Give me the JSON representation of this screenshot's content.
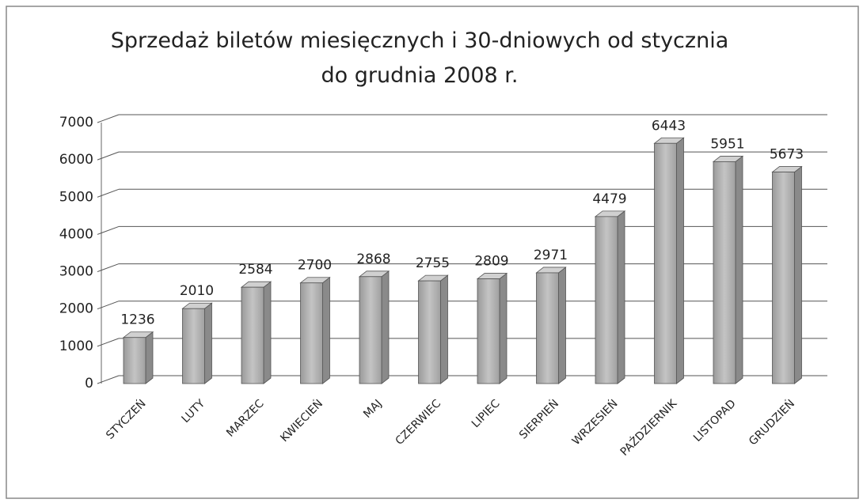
{
  "chart_data": {
    "type": "bar3d",
    "title": "Sprzedaż biletów miesięcznych i 30-dniowych od stycznia do grudnia 2008 r.",
    "categories": [
      "STYCZEŃ",
      "LUTY",
      "MARZEC",
      "KWIECIEŃ",
      "MAJ",
      "CZERWIEC",
      "LIPIEC",
      "SIERPIEŃ",
      "WRZESIEŃ",
      "PAŹDZIERNIK",
      "LISTOPAD",
      "GRUDZIEŃ"
    ],
    "values": [
      1236,
      2010,
      2584,
      2700,
      2868,
      2755,
      2809,
      2971,
      4479,
      6443,
      5951,
      5673
    ],
    "color": "#a8a8a8",
    "ylim": [
      0,
      7000
    ],
    "yticks": [
      0,
      1000,
      2000,
      3000,
      4000,
      5000,
      6000,
      7000
    ],
    "grid": true
  }
}
